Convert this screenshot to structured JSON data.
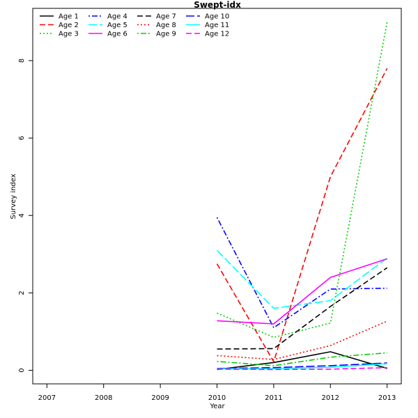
{
  "chart_data": {
    "type": "line",
    "title": "Swept-idx",
    "xlabel": "Year",
    "ylabel": "Survey index",
    "xlim": [
      2006.75,
      2013.25
    ],
    "ylim": [
      -0.35,
      9.35
    ],
    "x_ticks": [
      "2007",
      "2008",
      "2009",
      "2010",
      "2011",
      "2012",
      "2013"
    ],
    "y_ticks": [
      "0",
      "2",
      "4",
      "6",
      "8"
    ],
    "legend_position": "top-left",
    "grid": false,
    "x": [
      2010,
      2011,
      2012,
      2013
    ],
    "series": [
      {
        "name": "Age 1",
        "color": "#000000",
        "dash": "solid",
        "values": [
          0.02,
          0.2,
          0.48,
          0.05
        ]
      },
      {
        "name": "Age 2",
        "color": "#ff0000",
        "dash": "dashed",
        "values": [
          2.75,
          0.22,
          5.0,
          7.8
        ]
      },
      {
        "name": "Age 3",
        "color": "#00cd00",
        "dash": "dotted",
        "values": [
          1.48,
          0.85,
          1.22,
          9.0
        ]
      },
      {
        "name": "Age 4",
        "color": "#0000ff",
        "dash": "dotdash",
        "values": [
          3.95,
          1.1,
          2.1,
          2.12
        ]
      },
      {
        "name": "Age 5",
        "color": "#00ffff",
        "dash": "longdash",
        "values": [
          3.1,
          1.6,
          1.8,
          2.9
        ]
      },
      {
        "name": "Age 6",
        "color": "#ff00ff",
        "dash": "solid",
        "values": [
          1.28,
          1.2,
          2.4,
          2.88
        ]
      },
      {
        "name": "Age 7",
        "color": "#000000",
        "dash": "dashed",
        "values": [
          0.55,
          0.56,
          1.65,
          2.65
        ]
      },
      {
        "name": "Age 8",
        "color": "#ff0000",
        "dash": "dotted",
        "values": [
          0.38,
          0.28,
          0.64,
          1.27
        ]
      },
      {
        "name": "Age 9",
        "color": "#00cd00",
        "dash": "dotdash",
        "values": [
          0.23,
          0.12,
          0.34,
          0.45
        ]
      },
      {
        "name": "Age 10",
        "color": "#0000ff",
        "dash": "longdash",
        "values": [
          0.05,
          0.07,
          0.12,
          0.19
        ]
      },
      {
        "name": "Age 11",
        "color": "#00ffff",
        "dash": "solid",
        "values": [
          0.04,
          0.04,
          0.08,
          0.17
        ]
      },
      {
        "name": "Age 12",
        "color": "#ff00ff",
        "dash": "dashed",
        "values": [
          0.03,
          0.02,
          0.03,
          0.07
        ]
      }
    ]
  }
}
